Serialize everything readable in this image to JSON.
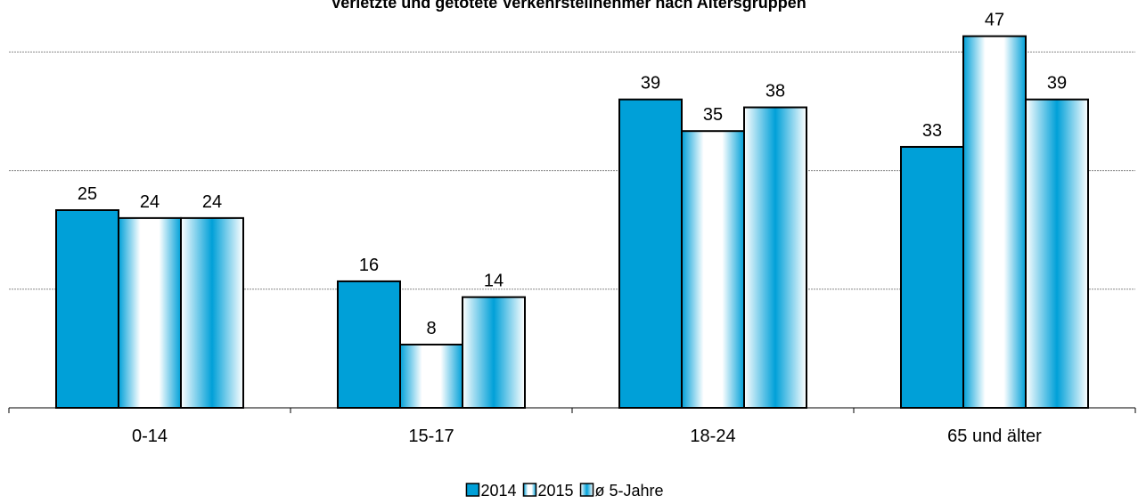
{
  "chart_data": {
    "type": "bar",
    "title": "Verletzte und getötete Verkehrsteilnehmer nach Altersgruppen",
    "categories": [
      "0-14",
      "15-17",
      "18-24",
      "65 und älter"
    ],
    "series": [
      {
        "name": "2014",
        "color": "#00a0d8",
        "values": [
          25,
          16,
          39,
          33
        ]
      },
      {
        "name": "2015",
        "color": "#00a0d8",
        "values": [
          24,
          8,
          35,
          47
        ]
      },
      {
        "name": "ø 5-Jahre",
        "color": "#00a0d8",
        "values": [
          24,
          14,
          38,
          39
        ]
      }
    ],
    "ylim": [
      0,
      50
    ],
    "yticks": [
      0,
      15,
      30,
      45
    ],
    "grid": true,
    "legend": "bottom"
  }
}
